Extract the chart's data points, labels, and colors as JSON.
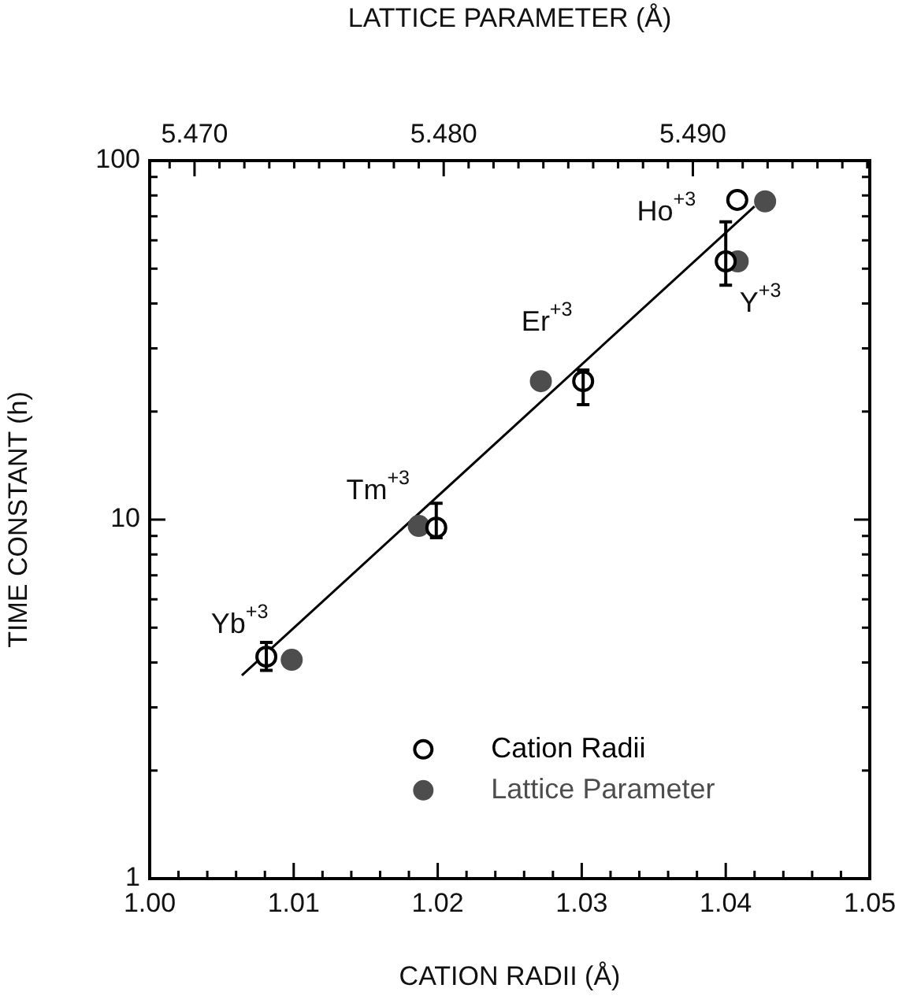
{
  "chart_data": {
    "type": "scatter",
    "xlabel": "CATION RADII (Å)",
    "x2label": "LATTICE PARAMETER (Å)",
    "ylabel": "TIME CONSTANT (h)",
    "log": "y",
    "grid": false,
    "legend": "bottom",
    "marker": "circle",
    "xlim": [
      1.0,
      1.05
    ],
    "xticks": [
      {
        "value": 1.0,
        "label": "1.00"
      },
      {
        "value": 1.002,
        "label": null
      },
      {
        "value": 1.004,
        "label": null
      },
      {
        "value": 1.006,
        "label": null
      },
      {
        "value": 1.008,
        "label": null
      },
      {
        "value": 1.01,
        "label": "1.01"
      },
      {
        "value": 1.012,
        "label": null
      },
      {
        "value": 1.014,
        "label": null
      },
      {
        "value": 1.016,
        "label": null
      },
      {
        "value": 1.018,
        "label": null
      },
      {
        "value": 1.02,
        "label": "1.02"
      },
      {
        "value": 1.022,
        "label": null
      },
      {
        "value": 1.024,
        "label": null
      },
      {
        "value": 1.026,
        "label": null
      },
      {
        "value": 1.028,
        "label": null
      },
      {
        "value": 1.03,
        "label": "1.03"
      },
      {
        "value": 1.032,
        "label": null
      },
      {
        "value": 1.034,
        "label": null
      },
      {
        "value": 1.036,
        "label": null
      },
      {
        "value": 1.038,
        "label": null
      },
      {
        "value": 1.04,
        "label": "1.04"
      },
      {
        "value": 1.042,
        "label": null
      },
      {
        "value": 1.044,
        "label": null
      },
      {
        "value": 1.046,
        "label": null
      },
      {
        "value": 1.048,
        "label": null
      },
      {
        "value": 1.05,
        "label": "1.05"
      }
    ],
    "x2lim": [
      5.4682,
      5.4971
    ],
    "x2ticks": [
      {
        "value": 5.469,
        "label": null
      },
      {
        "value": 5.47,
        "label": "5.470"
      },
      {
        "value": 5.471,
        "label": null
      },
      {
        "value": 5.472,
        "label": null
      },
      {
        "value": 5.473,
        "label": null
      },
      {
        "value": 5.474,
        "label": null
      },
      {
        "value": 5.475,
        "label": null
      },
      {
        "value": 5.476,
        "label": null
      },
      {
        "value": 5.477,
        "label": null
      },
      {
        "value": 5.478,
        "label": null
      },
      {
        "value": 5.479,
        "label": null
      },
      {
        "value": 5.48,
        "label": "5.480"
      },
      {
        "value": 5.481,
        "label": null
      },
      {
        "value": 5.482,
        "label": null
      },
      {
        "value": 5.483,
        "label": null
      },
      {
        "value": 5.484,
        "label": null
      },
      {
        "value": 5.485,
        "label": null
      },
      {
        "value": 5.486,
        "label": null
      },
      {
        "value": 5.487,
        "label": null
      },
      {
        "value": 5.488,
        "label": null
      },
      {
        "value": 5.489,
        "label": null
      },
      {
        "value": 5.49,
        "label": "5.490"
      },
      {
        "value": 5.491,
        "label": null
      },
      {
        "value": 5.492,
        "label": null
      },
      {
        "value": 5.493,
        "label": null
      },
      {
        "value": 5.494,
        "label": null
      },
      {
        "value": 5.495,
        "label": null
      },
      {
        "value": 5.496,
        "label": null
      },
      {
        "value": 5.497,
        "label": null
      }
    ],
    "ylim": [
      1,
      100
    ],
    "yticks": [
      1,
      {
        "value": 2,
        "label": null
      },
      {
        "value": 3,
        "label": null
      },
      {
        "value": 4,
        "label": null
      },
      {
        "value": 5,
        "label": null
      },
      {
        "value": 6,
        "label": null
      },
      {
        "value": 7,
        "label": null
      },
      {
        "value": 8,
        "label": null
      },
      {
        "value": 9,
        "label": null
      },
      10,
      {
        "value": 20,
        "label": null
      },
      {
        "value": 30,
        "label": null
      },
      {
        "value": 40,
        "label": null
      },
      {
        "value": 50,
        "label": null
      },
      {
        "value": 60,
        "label": null
      },
      {
        "value": 70,
        "label": null
      },
      {
        "value": 80,
        "label": null
      },
      {
        "value": 90,
        "label": null
      },
      100
    ],
    "series": [
      {
        "name": "Cation Radii",
        "color": "#000000",
        "x": [
          1.0081,
          1.0199,
          1.0301,
          1.04,
          1.0408
        ],
        "values": [
          4.15,
          9.5,
          24.3,
          52.4,
          77.7
        ],
        "errors": [
          [
            3.8,
            4.55
          ],
          [
            8.9,
            11.1
          ],
          [
            20.9,
            26.1
          ],
          [
            45,
            67.5
          ],
          null
        ]
      },
      {
        "name": "Lattice Parameter",
        "color": "#4d4d4d",
        "axis": "x2",
        "x": [
          5.4739,
          5.479,
          5.4839,
          5.4918,
          5.4929
        ],
        "values": [
          4.07,
          9.6,
          24.3,
          52.4,
          77
        ]
      },
      {
        "type": "line",
        "color": "#000000",
        "marker": "none",
        "x": [
          1.0064,
          1.042
        ],
        "values": [
          3.68,
          74.6
        ]
      }
    ],
    "annotations": [
      {
        "text": "Yb$^{+3}$",
        "x": 1.0081,
        "y": 4.15
      },
      {
        "text": "Tm$^{+3}$",
        "x": 1.0199,
        "y": 9.5
      },
      {
        "text": "Er$^{+3}$",
        "x": 1.0301,
        "y": 24.3
      },
      {
        "text": "Ho$^{+3}$",
        "x": 1.0408,
        "y": 77.7
      },
      {
        "text": "Y$^{+3}$",
        "x": 1.04,
        "y": 52.4
      }
    ]
  }
}
